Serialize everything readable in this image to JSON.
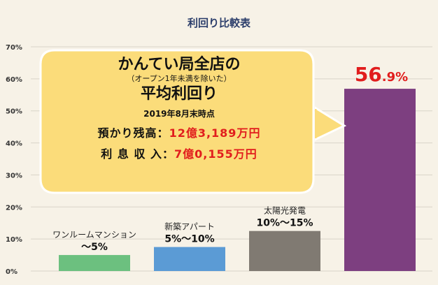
{
  "chart_data": {
    "type": "bar",
    "title": "利回り比較表",
    "categories": [
      "ワンルームマンション",
      "新築アパート",
      "太陽光発電",
      ""
    ],
    "range_labels": [
      "〜5%",
      "5%〜10%",
      "10%〜15%",
      "56.9%"
    ],
    "values": [
      5,
      7.5,
      12.5,
      56.9
    ],
    "ylim": [
      0,
      70
    ],
    "yticks": [
      "0%",
      "10%",
      "20%",
      "30%",
      "40%",
      "50%",
      "60%",
      "70%"
    ],
    "ytick_values": [
      0,
      10,
      20,
      30,
      40,
      50,
      60,
      70
    ],
    "colors": [
      "#6cc07f",
      "#5b9bd5",
      "#807a72",
      "#7d3f80"
    ],
    "grid": true
  },
  "callout": {
    "line1": "かんてい局全店の",
    "line2": "（オープン1年未満を除いた）",
    "line3": "平均利回り",
    "date": "2019年8月末時点",
    "row1_label": "預かり残高：",
    "row1_value": "12億3,189万円",
    "row2_label": "利 息 収 入：",
    "row2_value": "7億0,155万円",
    "bubble_color": "#fbdc7a"
  },
  "highlight": {
    "int": "56",
    "dec": ".9%"
  }
}
